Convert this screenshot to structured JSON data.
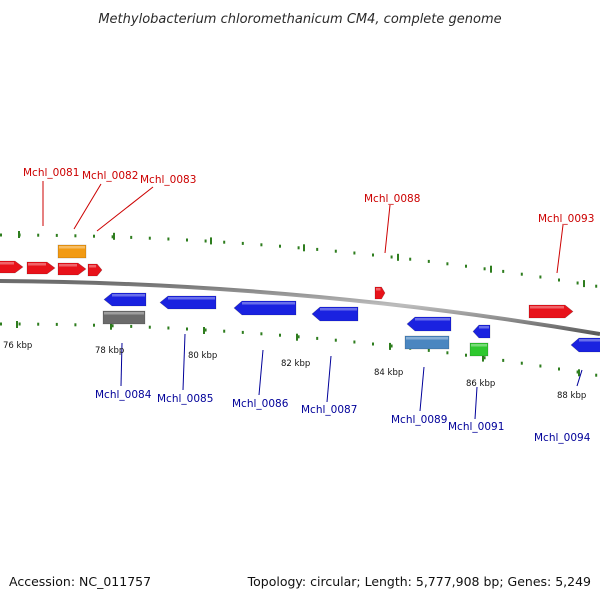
{
  "title": "Methylobacterium chloromethanicum CM4, complete genome",
  "footer": {
    "accession": "Accession: NC_011757",
    "summary": "Topology: circular; Length: 5,777,908 bp; Genes: 5,249"
  },
  "colors": {
    "forward_label": "#cc0000",
    "reverse_label": "#000099",
    "tick": "#2e7d1e",
    "backbone": "#8a8a8a",
    "red_gene": "#e8121a",
    "blue_gene": "#1a22e0",
    "orange_gene": "#f29a12",
    "gray_gene": "#6b6b6b",
    "steel_gene": "#4a86c0",
    "green_gene": "#2ec82e"
  },
  "ruler": [
    {
      "label": "76 kbp"
    },
    {
      "label": "78 kbp"
    },
    {
      "label": "80 kbp"
    },
    {
      "label": "82 kbp"
    },
    {
      "label": "84 kbp"
    },
    {
      "label": "86 kbp"
    },
    {
      "label": "88 kbp"
    }
  ],
  "forward_labels": [
    {
      "label": "Mchl_0081"
    },
    {
      "label": "Mchl_0082"
    },
    {
      "label": "Mchl_0083"
    },
    {
      "label": "Mchl_0088"
    },
    {
      "label": "Mchl_0093"
    }
  ],
  "reverse_labels": [
    {
      "label": "Mchl_0084"
    },
    {
      "label": "Mchl_0085"
    },
    {
      "label": "Mchl_0086"
    },
    {
      "label": "Mchl_0087"
    },
    {
      "label": "Mchl_0089"
    },
    {
      "label": "Mchl_0091"
    },
    {
      "label": "Mchl_0094"
    }
  ]
}
